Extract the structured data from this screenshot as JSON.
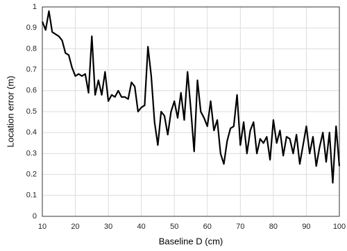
{
  "chart_data": {
    "type": "line",
    "x_label": "Baseline D (cm)",
    "y_label": "Location error (m)",
    "x": [
      10,
      11,
      12,
      13,
      14,
      15,
      16,
      17,
      18,
      19,
      20,
      21,
      22,
      23,
      24,
      25,
      26,
      27,
      28,
      29,
      30,
      31,
      32,
      33,
      34,
      35,
      36,
      37,
      38,
      39,
      40,
      41,
      42,
      43,
      44,
      45,
      46,
      47,
      48,
      49,
      50,
      51,
      52,
      53,
      54,
      55,
      56,
      57,
      58,
      59,
      60,
      61,
      62,
      63,
      64,
      65,
      66,
      67,
      68,
      69,
      70,
      71,
      72,
      73,
      74,
      75,
      76,
      77,
      78,
      79,
      80,
      81,
      82,
      83,
      84,
      85,
      86,
      87,
      88,
      89,
      90,
      91,
      92,
      93,
      94,
      95,
      96,
      97,
      98,
      99,
      100
    ],
    "series": [
      {
        "color": "#000000",
        "values": [
          0.93,
          0.89,
          0.98,
          0.88,
          0.87,
          0.86,
          0.84,
          0.78,
          0.77,
          0.71,
          0.67,
          0.68,
          0.67,
          0.68,
          0.59,
          0.86,
          0.58,
          0.65,
          0.58,
          0.69,
          0.55,
          0.58,
          0.57,
          0.6,
          0.57,
          0.57,
          0.56,
          0.64,
          0.62,
          0.5,
          0.52,
          0.53,
          0.81,
          0.67,
          0.45,
          0.34,
          0.5,
          0.48,
          0.39,
          0.5,
          0.55,
          0.47,
          0.59,
          0.46,
          0.69,
          0.51,
          0.31,
          0.65,
          0.5,
          0.47,
          0.43,
          0.55,
          0.41,
          0.46,
          0.3,
          0.25,
          0.36,
          0.42,
          0.43,
          0.58,
          0.34,
          0.45,
          0.3,
          0.41,
          0.45,
          0.3,
          0.37,
          0.35,
          0.38,
          0.27,
          0.46,
          0.35,
          0.41,
          0.29,
          0.38,
          0.37,
          0.3,
          0.39,
          0.25,
          0.34,
          0.43,
          0.3,
          0.38,
          0.24,
          0.33,
          0.4,
          0.26,
          0.4,
          0.16,
          0.43,
          0.24
        ]
      }
    ],
    "xlim": [
      10,
      100
    ],
    "xticks": [
      10,
      20,
      30,
      40,
      50,
      60,
      70,
      80,
      90,
      100
    ],
    "ylim": [
      0,
      1
    ],
    "yticks": [
      0,
      0.1,
      0.2,
      0.3,
      0.4,
      0.5,
      0.6,
      0.7,
      0.8,
      0.9,
      1
    ],
    "grid": true
  }
}
